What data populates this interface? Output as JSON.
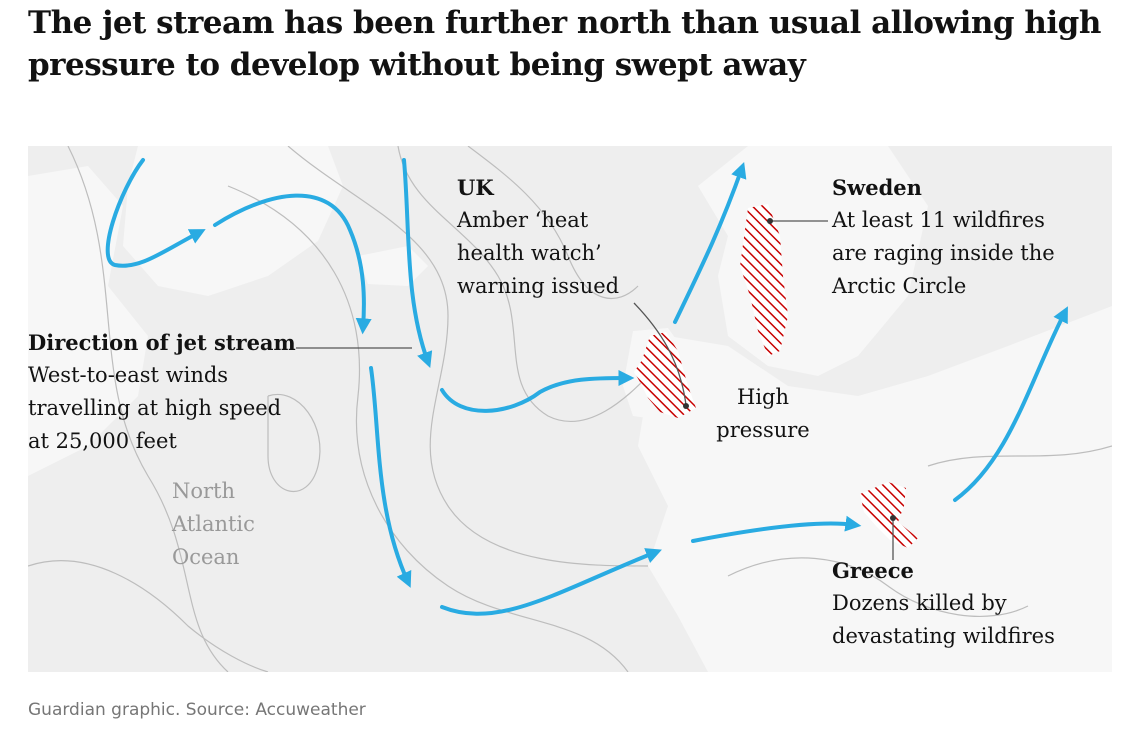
{
  "title": "The jet stream has been further north than usual allowing high pressure to develop without being swept away",
  "labels": {
    "jet_stream": {
      "heading": "Direction of jet stream",
      "lines": [
        "West-to-east winds",
        "travelling at high speed",
        "at 25,000 feet"
      ]
    },
    "uk": {
      "heading": "UK",
      "lines": [
        "Amber ‘heat",
        "health watch’",
        "warning issued"
      ]
    },
    "sweden": {
      "heading": "Sweden",
      "lines": [
        "At least 11 wildfires",
        "are raging inside the",
        "Arctic Circle"
      ]
    },
    "greece": {
      "heading": "Greece",
      "lines": [
        "Dozens killed by",
        "devastating wildfires"
      ]
    },
    "high_pressure": [
      "High",
      "pressure"
    ],
    "ocean": [
      "North",
      "Atlantic",
      "Ocean"
    ]
  },
  "colors": {
    "jet_arrow": "#29abe2",
    "hatch": "#c70000",
    "land": "#f7f7f7",
    "sea": "#eeeeee",
    "isobar": "#bdbdbd"
  },
  "source": "Guardian graphic. Source: Accuweather"
}
